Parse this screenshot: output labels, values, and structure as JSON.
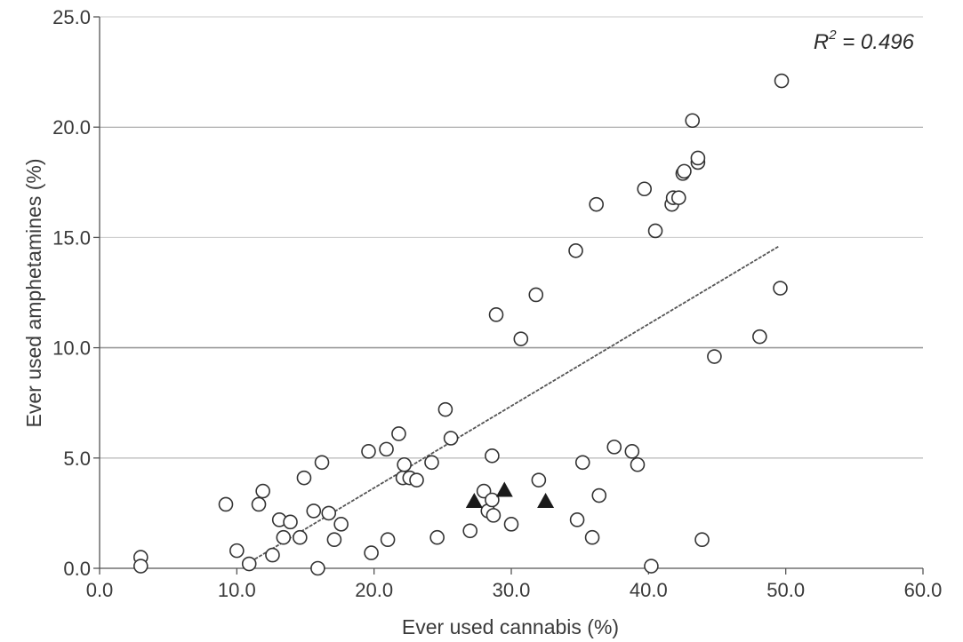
{
  "chart_data": {
    "type": "scatter",
    "title": "",
    "xlabel": "Ever used cannabis (%)",
    "ylabel": "Ever used amphetamines (%)",
    "xlim": [
      0,
      60
    ],
    "ylim": [
      0,
      25
    ],
    "x_ticks": [
      "0.0",
      "10.0",
      "20.0",
      "30.0",
      "40.0",
      "50.0",
      "60.0"
    ],
    "y_ticks": [
      "0.0",
      "5.0",
      "10.0",
      "15.0",
      "20.0",
      "25.0"
    ],
    "grid": "horizontal",
    "annotation": {
      "r_symbol": "R",
      "r_power": "2",
      "r_value": " = 0.496"
    },
    "trendline": {
      "x": [
        11.0,
        49.5
      ],
      "y": [
        0.3,
        14.6
      ]
    },
    "series": [
      {
        "marker": "open-circle",
        "points": [
          [
            3.0,
            0.5
          ],
          [
            3.0,
            0.1
          ],
          [
            9.2,
            2.9
          ],
          [
            10.0,
            0.8
          ],
          [
            10.9,
            0.2
          ],
          [
            11.6,
            2.9
          ],
          [
            11.9,
            3.5
          ],
          [
            12.6,
            0.6
          ],
          [
            13.1,
            2.2
          ],
          [
            13.4,
            1.4
          ],
          [
            13.9,
            2.1
          ],
          [
            14.6,
            1.4
          ],
          [
            14.9,
            4.1
          ],
          [
            15.6,
            2.6
          ],
          [
            15.9,
            0.0
          ],
          [
            16.2,
            4.8
          ],
          [
            16.7,
            2.5
          ],
          [
            17.1,
            1.3
          ],
          [
            17.6,
            2.0
          ],
          [
            19.6,
            5.3
          ],
          [
            19.8,
            0.7
          ],
          [
            20.9,
            5.4
          ],
          [
            21.0,
            1.3
          ],
          [
            21.8,
            6.1
          ],
          [
            22.1,
            4.1
          ],
          [
            22.2,
            4.7
          ],
          [
            22.6,
            4.1
          ],
          [
            23.1,
            4.0
          ],
          [
            24.2,
            4.8
          ],
          [
            24.6,
            1.4
          ],
          [
            25.2,
            7.2
          ],
          [
            25.6,
            5.9
          ],
          [
            27.0,
            1.7
          ],
          [
            28.0,
            3.5
          ],
          [
            28.3,
            2.6
          ],
          [
            28.6,
            3.1
          ],
          [
            28.6,
            5.1
          ],
          [
            28.7,
            2.4
          ],
          [
            28.9,
            11.5
          ],
          [
            30.0,
            2.0
          ],
          [
            30.7,
            10.4
          ],
          [
            31.8,
            12.4
          ],
          [
            32.0,
            4.0
          ],
          [
            34.7,
            14.4
          ],
          [
            34.8,
            2.2
          ],
          [
            35.2,
            4.8
          ],
          [
            35.9,
            1.4
          ],
          [
            36.2,
            16.5
          ],
          [
            36.4,
            3.3
          ],
          [
            37.5,
            5.5
          ],
          [
            38.8,
            5.3
          ],
          [
            39.2,
            4.7
          ],
          [
            39.7,
            17.2
          ],
          [
            40.2,
            0.1
          ],
          [
            40.5,
            15.3
          ],
          [
            41.7,
            16.5
          ],
          [
            41.8,
            16.8
          ],
          [
            42.2,
            16.8
          ],
          [
            42.5,
            17.9
          ],
          [
            42.6,
            18.0
          ],
          [
            43.2,
            20.3
          ],
          [
            43.6,
            18.4
          ],
          [
            43.6,
            18.6
          ],
          [
            43.9,
            1.3
          ],
          [
            44.8,
            9.6
          ],
          [
            48.1,
            10.5
          ],
          [
            49.6,
            12.7
          ],
          [
            49.7,
            22.1
          ]
        ]
      },
      {
        "marker": "filled-triangle",
        "points": [
          [
            27.3,
            3.0
          ],
          [
            29.5,
            3.5
          ],
          [
            32.5,
            3.0
          ]
        ]
      }
    ]
  }
}
